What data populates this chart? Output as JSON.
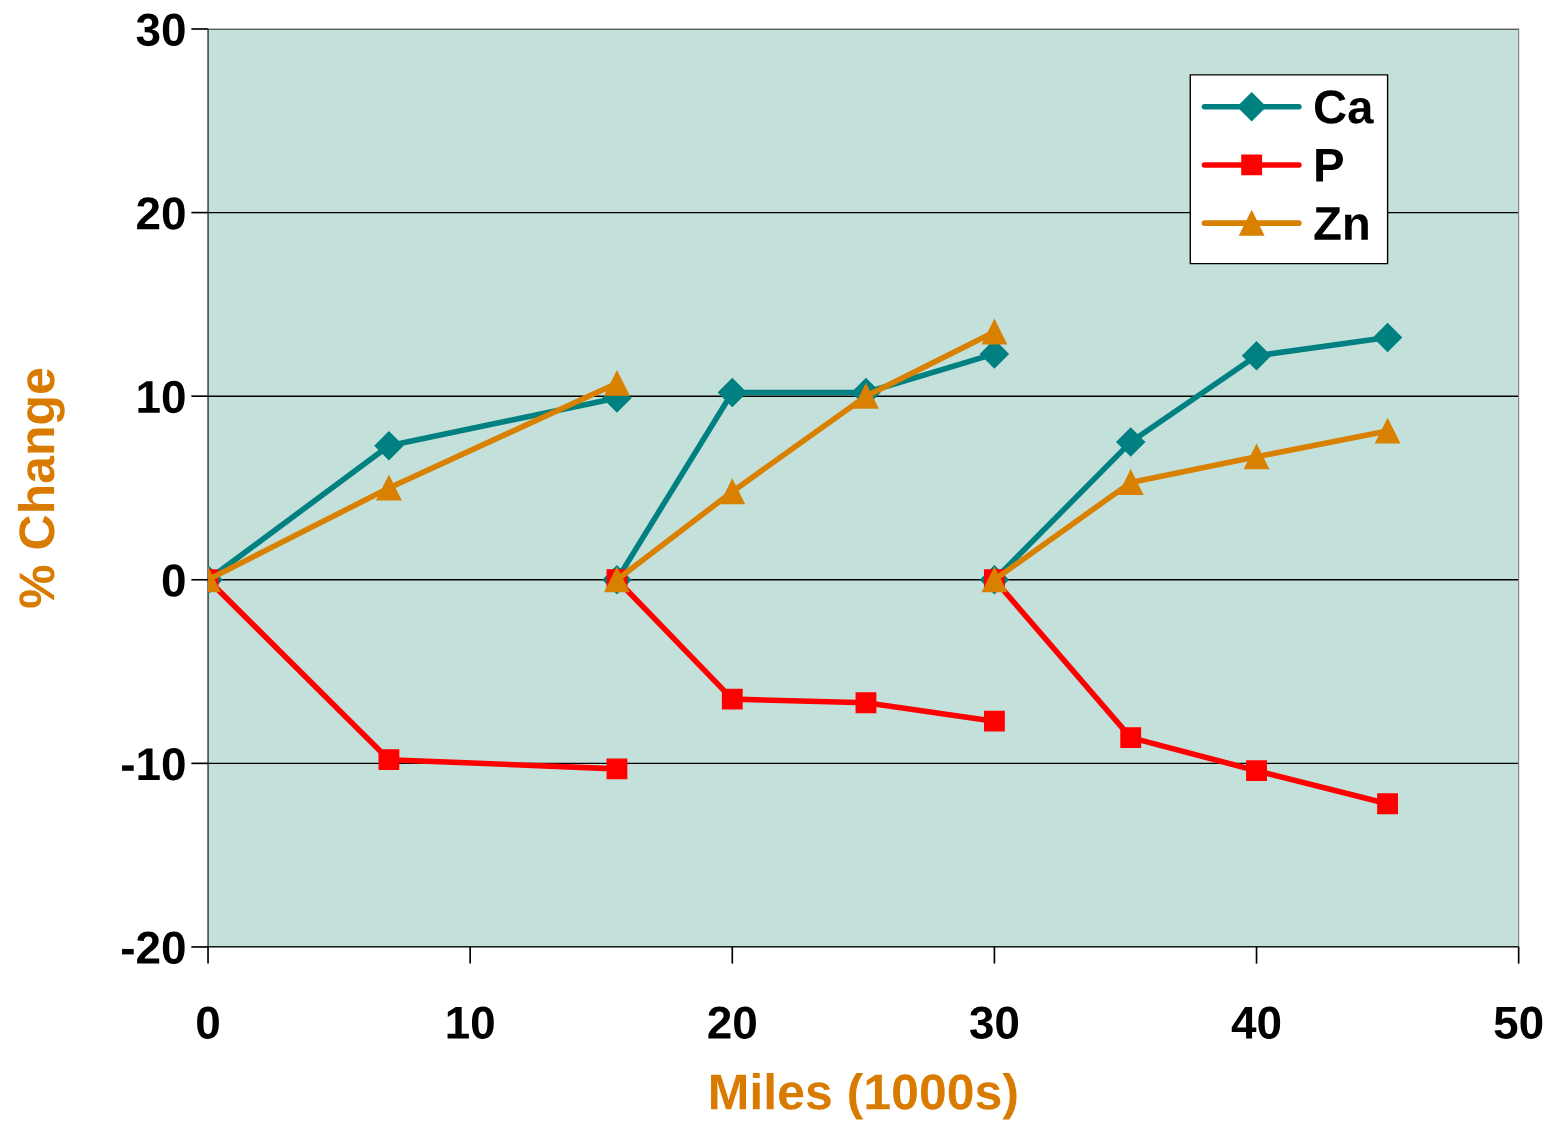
{
  "chart_data": {
    "type": "line",
    "xlabel": "Miles (1000s)",
    "ylabel": "% Change",
    "series": [
      {
        "name": "Ca",
        "color": "#008080",
        "marker": "diamond",
        "x": [
          0,
          6.9,
          15.6
        ],
        "values": [
          0,
          7.3,
          9.9
        ]
      },
      {
        "name": "P",
        "color": "#ff0000",
        "marker": "square",
        "x": [
          0,
          6.9,
          15.6
        ],
        "values": [
          0,
          -9.8,
          -10.3
        ]
      },
      {
        "name": "Zn",
        "color": "#d98000",
        "marker": "triangle",
        "x": [
          0,
          6.9,
          15.6
        ],
        "values": [
          0,
          5.0,
          10.7
        ]
      },
      {
        "color": "#008080",
        "marker": "diamond",
        "x": [
          15.6,
          20,
          25.1,
          30
        ],
        "values": [
          0,
          10.2,
          10.2,
          12.3
        ]
      },
      {
        "color": "#ff0000",
        "marker": "square",
        "x": [
          15.6,
          20,
          25.1,
          30
        ],
        "values": [
          0,
          -6.5,
          -6.7,
          -7.7
        ]
      },
      {
        "color": "#d98000",
        "marker": "triangle",
        "x": [
          15.6,
          20,
          25.1,
          30
        ],
        "values": [
          0,
          4.8,
          10.0,
          13.5
        ]
      },
      {
        "color": "#008080",
        "marker": "diamond",
        "x": [
          30,
          35.2,
          40,
          45
        ],
        "values": [
          0,
          7.5,
          12.2,
          13.2
        ]
      },
      {
        "color": "#ff0000",
        "marker": "square",
        "x": [
          30,
          35.2,
          40,
          45
        ],
        "values": [
          0,
          -8.6,
          -10.4,
          -12.2
        ]
      },
      {
        "color": "#d98000",
        "marker": "triangle",
        "x": [
          30,
          35.2,
          40,
          45
        ],
        "values": [
          0,
          5.3,
          6.7,
          8.1
        ]
      }
    ],
    "xlim": [
      0,
      50
    ],
    "xticks": [
      0,
      10,
      20,
      30,
      40,
      50
    ],
    "ylim": [
      -20,
      30
    ],
    "yticks": [
      -20,
      -10,
      0,
      10,
      20,
      30
    ],
    "grid": "y",
    "legend": "top right",
    "line_style": "solid"
  }
}
